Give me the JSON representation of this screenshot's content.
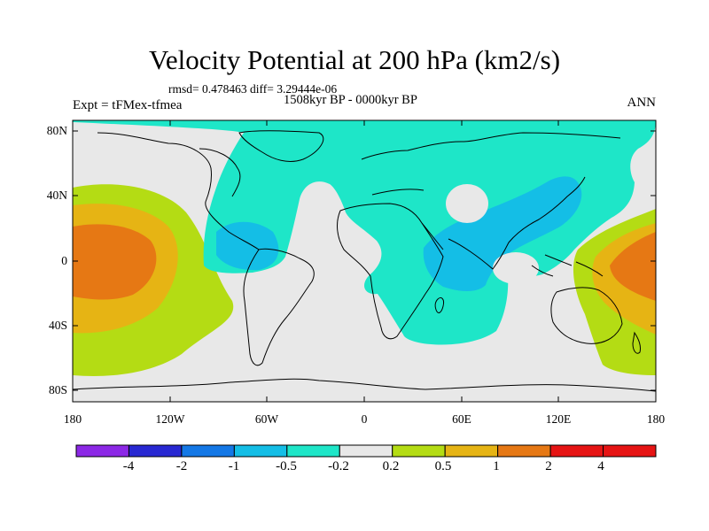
{
  "title": "Velocity Potential at 200 hPa (km2/s)",
  "stats": "rmsd= 0.478463 diff= 3.29444e-06",
  "period": "1508kyr BP - 0000kyr BP",
  "experiment": "Expt = tFMex-tfmea",
  "season": "ANN",
  "lat_ticks": [
    "80N",
    "40N",
    "0",
    "40S",
    "80S"
  ],
  "lon_ticks": [
    "180",
    "120W",
    "60W",
    "0",
    "60E",
    "120E",
    "180"
  ],
  "colorbar": {
    "labels": [
      "-4",
      "-2",
      "-1",
      "-0.5",
      "-0.2",
      "0.2",
      "0.5",
      "1",
      "2",
      "4"
    ],
    "colors": [
      "#8c28e6",
      "#2828d2",
      "#1478e6",
      "#14bee6",
      "#1ee6c8",
      "#e8e8e8",
      "#b4dc14",
      "#e6b414",
      "#e67814",
      "#e61414"
    ]
  },
  "fill_colors": {
    "neutral": "#e8e8e8",
    "neg_weak": "#1ee6c8",
    "neg_mid": "#14bee6",
    "pos_weak": "#b4dc14",
    "pos_mid": "#e6b414",
    "pos_strong": "#e67814"
  }
}
